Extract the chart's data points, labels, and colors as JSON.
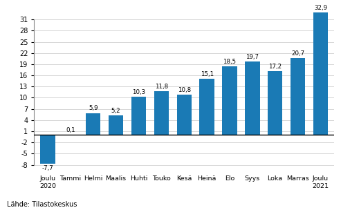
{
  "categories": [
    "Joulu\n2020",
    "Tammi",
    "Helmi",
    "Maalis",
    "Huhti",
    "Touko",
    "Kesä",
    "Heinä",
    "Elo",
    "Syys",
    "Loka",
    "Marras",
    "Joulu\n2021"
  ],
  "values": [
    -7.7,
    0.1,
    5.9,
    5.2,
    10.3,
    11.8,
    10.8,
    15.1,
    18.5,
    19.7,
    17.2,
    20.7,
    32.9
  ],
  "bar_color": "#1a7ab5",
  "ylim": [
    -10,
    34
  ],
  "yticks": [
    -8,
    -5,
    -2,
    1,
    4,
    7,
    10,
    13,
    16,
    19,
    22,
    25,
    28,
    31
  ],
  "ytick_labels": [
    "-8",
    "-5",
    "-2",
    "1",
    "4",
    "7",
    "10",
    "13",
    "16",
    "19",
    "22",
    "25",
    "28",
    "31"
  ],
  "background_color": "#ffffff",
  "grid_color": "#c8c8c8",
  "footer": "Lähde: Tilastokeskus"
}
